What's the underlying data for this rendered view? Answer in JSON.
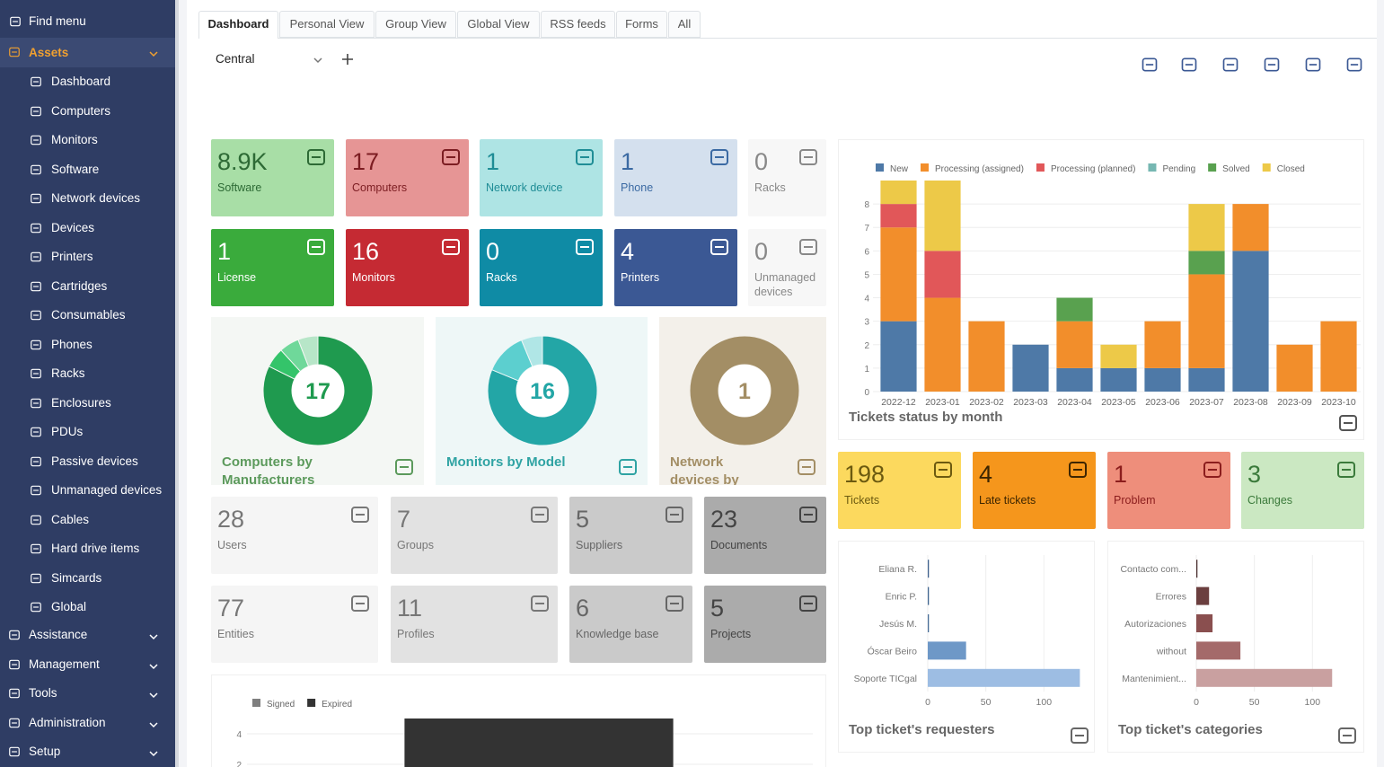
{
  "sidebar": {
    "search": "Find menu",
    "sections": [
      {
        "label": "Assets",
        "items": [
          "Dashboard",
          "Computers",
          "Monitors",
          "Software",
          "Network devices",
          "Devices",
          "Printers",
          "Cartridges",
          "Consumables",
          "Phones",
          "Racks",
          "Enclosures",
          "PDUs",
          "Passive devices",
          "Unmanaged devices",
          "Cables",
          "Hard drive items",
          "Simcards",
          "Global"
        ]
      },
      {
        "label": "Assistance"
      },
      {
        "label": "Management"
      },
      {
        "label": "Tools"
      },
      {
        "label": "Administration"
      },
      {
        "label": "Setup"
      }
    ]
  },
  "tabs": [
    "Dashboard",
    "Personal View",
    "Group View",
    "Global View",
    "RSS feeds",
    "Forms",
    "All"
  ],
  "dashboard_select": "Central",
  "asset_cards": [
    {
      "value": "8.9K",
      "label": "Software",
      "color": "#a8dea6",
      "text_color": "#2d6a35"
    },
    {
      "value": 17,
      "label": "Computers",
      "color": "#e69595",
      "text_color": "#7c1d22"
    },
    {
      "value": 1,
      "label": "Network device",
      "color": "#aee4e4",
      "text_color": "#1f8d96"
    },
    {
      "value": 1,
      "label": "Phone",
      "color": "#d4e0ee",
      "text_color": "#3b6aa3"
    },
    {
      "value": 0,
      "label": "Racks",
      "color": "#f7f7f7",
      "text_color": "#888888"
    },
    {
      "value": 1,
      "label": "License",
      "color": "#3aab3c",
      "text_color": "#ffffff"
    },
    {
      "value": 16,
      "label": "Monitors",
      "color": "#c52a33",
      "text_color": "#ffffff"
    },
    {
      "value": 0,
      "label": "Racks",
      "color": "#0f8ba5",
      "text_color": "#ffffff"
    },
    {
      "value": 4,
      "label": "Printers",
      "color": "#3b5894",
      "text_color": "#ffffff"
    },
    {
      "value": 0,
      "label": "Unmanaged devices",
      "color": "#f7f7f7",
      "text_color": "#888888"
    }
  ],
  "admin_cards": [
    {
      "value": 28,
      "label": "Users",
      "color": "#f5f5f5",
      "text_color": "#777777"
    },
    {
      "value": 7,
      "label": "Groups",
      "color": "#e2e2e2",
      "text_color": "#777777"
    },
    {
      "value": 5,
      "label": "Suppliers",
      "color": "#cacaca",
      "text_color": "#666666"
    },
    {
      "value": 23,
      "label": "Documents",
      "color": "#ababab",
      "text_color": "#444444"
    },
    {
      "value": 77,
      "label": "Entities",
      "color": "#f5f5f5",
      "text_color": "#777777"
    },
    {
      "value": 11,
      "label": "Profiles",
      "color": "#e2e2e2",
      "text_color": "#777777"
    },
    {
      "value": 6,
      "label": "Knowledge base",
      "color": "#cacaca",
      "text_color": "#666666"
    },
    {
      "value": 5,
      "label": "Projects",
      "color": "#ababab",
      "text_color": "#444444"
    }
  ],
  "ticket_cards": [
    {
      "value": 198,
      "label": "Tickets",
      "color": "#fcd95e",
      "text_color": "#6c5a10"
    },
    {
      "value": 4,
      "label": "Late tickets",
      "color": "#f5961c",
      "text_color": "#3d2500"
    },
    {
      "value": 1,
      "label": "Problem",
      "color": "#ee8e7b",
      "text_color": "#8b1d1d"
    },
    {
      "value": 3,
      "label": "Changes",
      "color": "#cbe8c2",
      "text_color": "#3b7a3b"
    }
  ],
  "chart_data": [
    {
      "type": "bar",
      "stacked": true,
      "title": "Tickets status by month",
      "categories": [
        "2022-12",
        "2023-01",
        "2023-02",
        "2023-03",
        "2023-04",
        "2023-05",
        "2023-06",
        "2023-07",
        "2023-08",
        "2023-09",
        "2023-10"
      ],
      "series": [
        {
          "name": "New",
          "color": "#4e79a7",
          "values": [
            3,
            0,
            0,
            2,
            1,
            1,
            1,
            1,
            6,
            0,
            0
          ]
        },
        {
          "name": "Processing (assigned)",
          "color": "#f28e2b",
          "values": [
            4,
            4,
            3,
            0,
            2,
            0,
            2,
            4,
            2,
            2,
            3
          ]
        },
        {
          "name": "Processing (planned)",
          "color": "#e15759",
          "values": [
            1,
            2,
            0,
            0,
            0,
            0,
            0,
            0,
            0,
            0,
            0
          ]
        },
        {
          "name": "Pending",
          "color": "#76b7b2",
          "values": [
            0,
            0,
            0,
            0,
            0,
            0,
            0,
            0,
            0,
            0,
            0
          ]
        },
        {
          "name": "Solved",
          "color": "#59a14f",
          "values": [
            0,
            0,
            0,
            0,
            1,
            0,
            0,
            1,
            0,
            0,
            0
          ]
        },
        {
          "name": "Closed",
          "color": "#edc948",
          "values": [
            1,
            3,
            0,
            0,
            0,
            1,
            0,
            2,
            0,
            0,
            0
          ]
        }
      ],
      "ylim": [
        0,
        9
      ],
      "yticks": [
        0,
        1,
        2,
        3,
        4,
        5,
        6,
        7,
        8
      ],
      "grid": true
    },
    {
      "type": "hbar",
      "title": "Top ticket's requesters",
      "categories": [
        "Eliana R.",
        "Enric P.",
        "Jesús M.",
        "Óscar Beiro",
        "Soporte TICgal"
      ],
      "values": [
        1,
        1,
        1,
        33,
        131
      ],
      "colors": [
        "#3d5f8c",
        "#40658f",
        "#466b96",
        "#6e98c7",
        "#9dbde3"
      ],
      "xlim": [
        0,
        140
      ],
      "xticks": [
        0,
        50,
        100
      ],
      "grid": true
    },
    {
      "type": "hbar",
      "title": "Top ticket's categories",
      "categories": [
        "Contacto com...",
        "Errores",
        "Autorizaciones",
        "without",
        "Mantenimient..."
      ],
      "values": [
        1,
        11,
        14,
        38,
        117
      ],
      "colors": [
        "#4a2f2f",
        "#6b3f3f",
        "#8a4f4f",
        "#a46a6a",
        "#c9a0a0"
      ],
      "xlim": [
        0,
        140
      ],
      "xticks": [
        0,
        50,
        100
      ],
      "grid": true
    },
    {
      "type": "bar",
      "stacked": true,
      "categories": [
        null
      ],
      "series": [
        {
          "name": "Signed",
          "color": "#7f7f7f",
          "values": [
            0
          ]
        },
        {
          "name": "Expired",
          "color": "#333333",
          "values": [
            5
          ]
        }
      ],
      "ylim": [
        0,
        5
      ],
      "yticks": [
        2,
        4
      ],
      "grid": true
    },
    {
      "type": "donut",
      "title": "Computers by Manufacturers",
      "center_label": 17,
      "categories": [
        null,
        null,
        null,
        null
      ],
      "values": [
        14,
        1,
        1,
        1
      ],
      "colors": [
        "#1f9a4f",
        "#34c46a",
        "#6fd89a",
        "#b7e6c8"
      ],
      "title_color": "#5c9a5c",
      "background": "#f4f7f4"
    },
    {
      "type": "donut",
      "title": "Monitors by Model",
      "center_label": 16,
      "categories": [
        null,
        null,
        null
      ],
      "values": [
        13,
        2,
        1
      ],
      "colors": [
        "#23a6a6",
        "#5ccfcf",
        "#b0e6e6"
      ],
      "title_color": "#2fa3a3",
      "background": "#eef7f7"
    },
    {
      "type": "donut",
      "title": "Network devices by Status",
      "center_label": 1,
      "categories": [
        null
      ],
      "values": [
        1
      ],
      "colors": [
        "#a38e65"
      ],
      "title_color": "#a38e65",
      "background": "#f3f0ea"
    }
  ]
}
